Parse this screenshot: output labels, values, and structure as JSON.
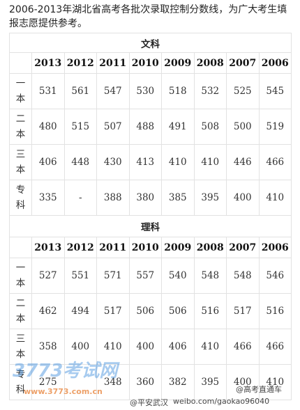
{
  "intro": "2006-2013年湖北省高考各批次录取控制分数线，为广大考生填报志愿提供参考。",
  "tables": [
    {
      "subject": "文科",
      "years": [
        "2013",
        "2012",
        "2011",
        "2010",
        "2009",
        "2008",
        "2007",
        "2006"
      ],
      "rows": [
        {
          "label": "一本",
          "values": [
            531,
            561,
            547,
            530,
            518,
            532,
            525,
            545
          ]
        },
        {
          "label": "二本",
          "values": [
            480,
            515,
            507,
            488,
            491,
            508,
            500,
            519
          ]
        },
        {
          "label": "三本",
          "values": [
            406,
            448,
            430,
            413,
            410,
            410,
            446,
            466
          ]
        },
        {
          "label": "专科",
          "values": [
            335,
            "-",
            388,
            380,
            385,
            395,
            400,
            410
          ]
        }
      ]
    },
    {
      "subject": "理科",
      "years": [
        "2013",
        "2012",
        "2011",
        "2010",
        "2009",
        "2008",
        "2007",
        "2006"
      ],
      "rows": [
        {
          "label": "一本",
          "values": [
            527,
            551,
            571,
            557,
            540,
            548,
            548,
            546
          ]
        },
        {
          "label": "二本",
          "values": [
            462,
            494,
            517,
            506,
            506,
            516,
            517,
            516
          ]
        },
        {
          "label": "三本",
          "values": [
            358,
            400,
            410,
            400,
            406,
            410,
            466,
            466
          ]
        },
        {
          "label": "专科",
          "values": [
            275,
            null,
            348,
            360,
            382,
            395,
            400,
            410
          ]
        }
      ]
    }
  ],
  "watermarks": {
    "site_name": "3773考试网",
    "site_url": "www.3773.com.cn",
    "weibo_user": "@平安武汉",
    "weibo_url": "weibo.com/gaokao96040",
    "weibo_brand": "@高考直通车"
  }
}
